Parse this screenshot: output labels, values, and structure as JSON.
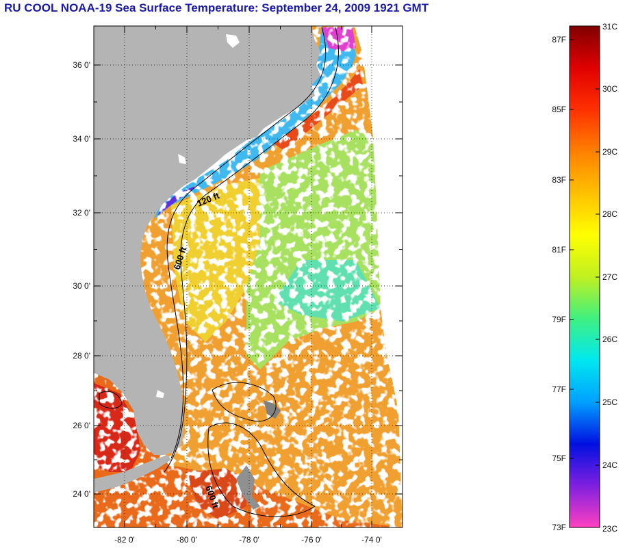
{
  "title": "RU COOL  NOAA-19  Sea Surface Temperature:  September 24, 2009 1921 GMT",
  "map": {
    "lon_labels": [
      "-82 0'",
      "-80 0'",
      "-78 0'",
      "-76 0'",
      "-74 0'"
    ],
    "lat_labels": [
      "36 0'",
      "34 0'",
      "32 0'",
      "30 0'",
      "28 0'",
      "26 0'",
      "24 0'"
    ],
    "contours": [
      "120 ft",
      "600 ft",
      "600 ft"
    ],
    "colors": {
      "land": "#b4b4b4",
      "cloud": "#ffffff",
      "warm": "#e86a1a",
      "hot": "#d41c10",
      "mild": "#e8d428",
      "cool": "#80e070",
      "cold": "#4090f0"
    }
  },
  "colorbar": {
    "fahrenheit": [
      "87F",
      "85F",
      "83F",
      "81F",
      "79F",
      "77F",
      "75F",
      "73F"
    ],
    "celsius": [
      "31C",
      "30C",
      "29C",
      "28C",
      "27C",
      "26C",
      "25C",
      "24C",
      "23C"
    ],
    "stops": [
      "#ff40c0",
      "#8020e0",
      "#0010e0",
      "#00a0ff",
      "#00e8f0",
      "#40f080",
      "#c0f020",
      "#ffff00",
      "#ffc000",
      "#ff8000",
      "#ff3000",
      "#e00000",
      "#800000"
    ]
  }
}
